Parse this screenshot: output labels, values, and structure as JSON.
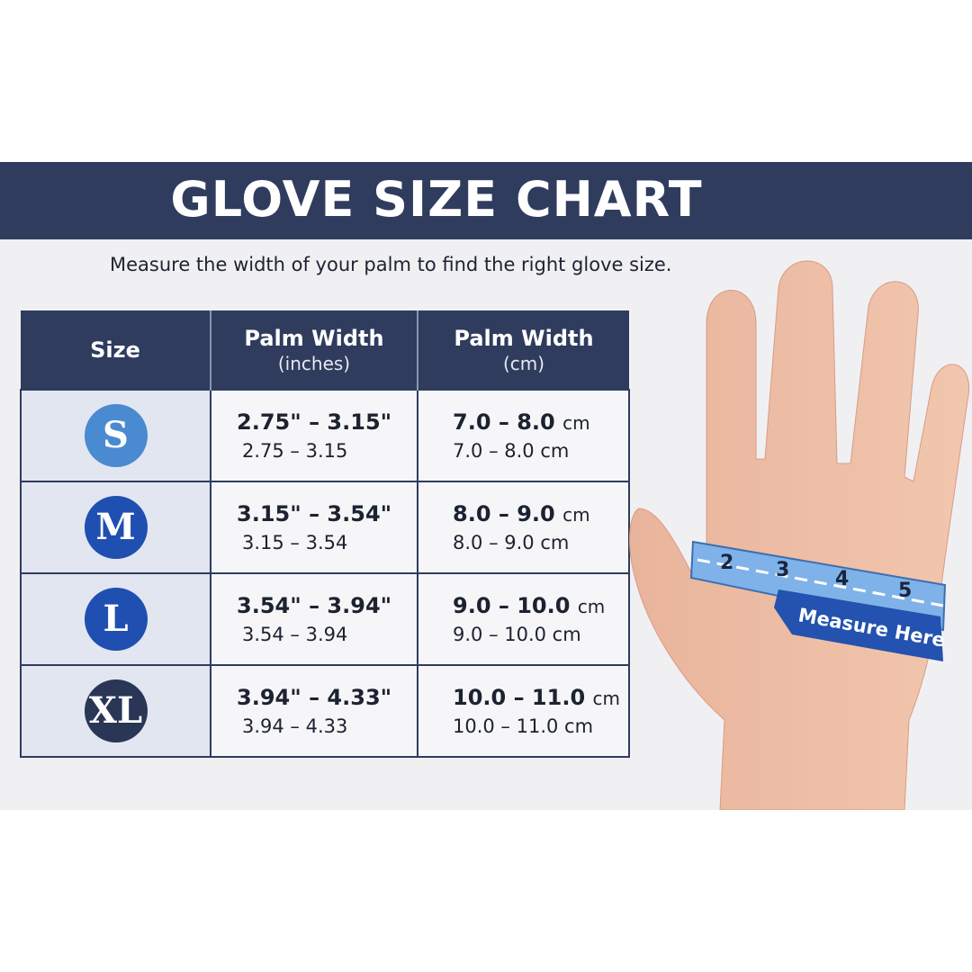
{
  "title": "GLOVE SIZE CHART",
  "subtitle": "Measure the width of your palm to find the right glove size.",
  "table": {
    "headers": [
      {
        "label": "Size",
        "unit": ""
      },
      {
        "label": "Palm Width",
        "unit": "(inches)"
      },
      {
        "label": "Palm Width",
        "unit": "(cm)"
      }
    ],
    "rows": [
      {
        "size": "S",
        "color": "#4a8ad0",
        "inches_main": "2.75\" – 3.15\"",
        "inches_sub": "2.75 – 3.15",
        "cm_main": "7.0 – 8.0",
        "cm_unit": "cm",
        "cm_sub": "7.0 – 8.0 cm"
      },
      {
        "size": "M",
        "color": "#1f4fb0",
        "inches_main": "3.15\" – 3.54\"",
        "inches_sub": "3.15 – 3.54",
        "cm_main": "8.0 – 9.0",
        "cm_unit": "cm",
        "cm_sub": "8.0 –  9.0 cm"
      },
      {
        "size": "L",
        "color": "#1f4fb0",
        "inches_main": "3.54\" – 3.94\"",
        "inches_sub": "3.54 – 3.94",
        "cm_main": "9.0 – 10.0",
        "cm_unit": "cm",
        "cm_sub": "9.0 – 10.0 cm"
      },
      {
        "size": "XL",
        "color": "#2a3656",
        "inches_main": "3.94\" – 4.33\"",
        "inches_sub": "3.94 – 4.33",
        "cm_main": "10.0 – 11.0",
        "cm_unit": "cm",
        "cm_sub": "10.0 – 11.0 cm"
      }
    ]
  },
  "illustration": {
    "tape_numbers": [
      "2",
      "3",
      "4",
      "5"
    ],
    "callout": "Measure Here",
    "tape_color": "#7fb2e8",
    "callout_color": "#2352b0"
  },
  "colors": {
    "banner": "#2f3c5e",
    "panel": "#f0f0f3"
  }
}
